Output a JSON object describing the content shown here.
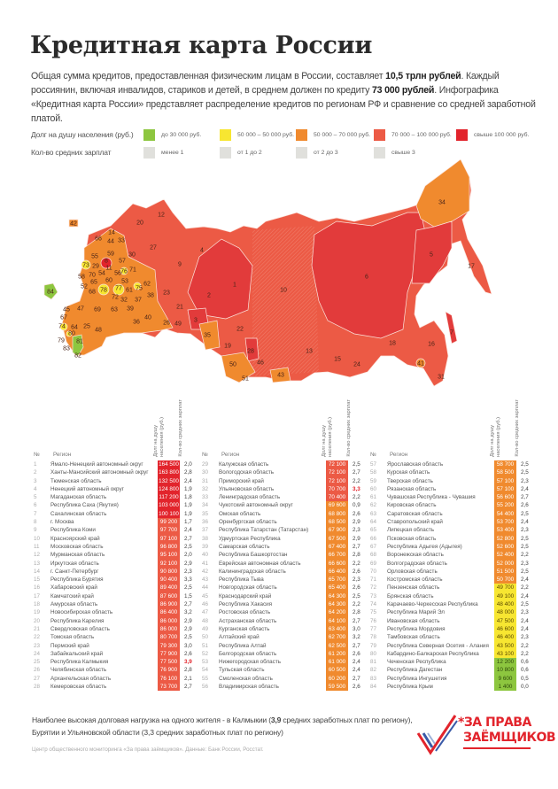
{
  "title": "Кредитная карта России",
  "intro": {
    "p1": "Общая сумма кредитов, предоставленная физическим лицам в России, составляет ",
    "b1": "10,5 трлн рублей",
    "p2": ". Каждый россиянин, включая инвалидов, стариков и детей, в среднем должен по кредиту ",
    "b2": "73 000 рублей",
    "p3": ". Инфографика «Кредитная карта России» представляет распределение кредитов по регионам РФ и сравнение со средней заработной платой."
  },
  "legend": {
    "debt_label": "Долг на душу населения (руб.)",
    "debt_items": [
      {
        "label": "до 30 000 руб.",
        "color": "#8dc63f"
      },
      {
        "label": "50 000 – 50 000 руб.",
        "color": "#f7e631"
      },
      {
        "label": "50 000 – 70 000 руб.",
        "color": "#f08a2e"
      },
      {
        "label": "70 000 – 100 000 руб.",
        "color": "#ec5a45"
      },
      {
        "label": "свыше 100 000 руб.",
        "color": "#e2242c"
      }
    ],
    "salary_label": "Кол-во средних зарплат",
    "salary_items": [
      {
        "label": "менее 1",
        "color": "#dddddd"
      },
      {
        "label": "от 1 до 2",
        "color": "#dddddd"
      },
      {
        "label": "от 2 до 3",
        "color": "#dddddd"
      },
      {
        "label": "свыше 3",
        "color": "#dddddd"
      }
    ]
  },
  "map_labels": [
    "42",
    "12",
    "20",
    "14",
    "33",
    "66",
    "44",
    "27",
    "4",
    "55",
    "59",
    "30",
    "73",
    "29",
    "8",
    "11",
    "57",
    "76",
    "71",
    "9",
    "58",
    "70",
    "54",
    "56",
    "1",
    "52",
    "65",
    "60",
    "53",
    "62",
    "78",
    "77",
    "61",
    "75",
    "23",
    "2",
    "84",
    "68",
    "72",
    "32",
    "37",
    "38",
    "45",
    "47",
    "69",
    "63",
    "39",
    "21",
    "67",
    "40",
    "3",
    "36",
    "26",
    "49",
    "22",
    "74",
    "64",
    "25",
    "48",
    "80",
    "35",
    "79",
    "81",
    "83",
    "82",
    "19",
    "28",
    "46",
    "50",
    "51",
    "43",
    "34",
    "10",
    "6",
    "5",
    "17",
    "13",
    "15",
    "24",
    "18",
    "16",
    "7",
    "41",
    "31"
  ],
  "table_headers": {
    "no": "№",
    "region": "Регион",
    "debt": "Долг на душу населения (руб.)",
    "salaries": "Кол-во средних зарплат"
  },
  "regions": [
    {
      "no": "1",
      "name": "Ямало-Ненецкий автономный округ",
      "debt": "164 500",
      "sal": "2,0"
    },
    {
      "no": "2",
      "name": "Ханты-Мансийский автономный округ",
      "debt": "163 800",
      "sal": "2,8"
    },
    {
      "no": "3",
      "name": "Тюменская область",
      "debt": "132 500",
      "sal": "2,4"
    },
    {
      "no": "4",
      "name": "Ненецкий автономный округ",
      "debt": "124 800",
      "sal": "1,9"
    },
    {
      "no": "5",
      "name": "Магаданская область",
      "debt": "117 200",
      "sal": "1,8"
    },
    {
      "no": "6",
      "name": "Республика Саха (Якутия)",
      "debt": "103 000",
      "sal": "1,9"
    },
    {
      "no": "7",
      "name": "Сахалинская область",
      "debt": "100 100",
      "sal": "1,9"
    },
    {
      "no": "8",
      "name": "г. Москва",
      "debt": "99 200",
      "sal": "1,7"
    },
    {
      "no": "9",
      "name": "Республика Коми",
      "debt": "97 700",
      "sal": "2,4"
    },
    {
      "no": "10",
      "name": "Красноярский край",
      "debt": "97 100",
      "sal": "2,7"
    },
    {
      "no": "11",
      "name": "Московская область",
      "debt": "96 800",
      "sal": "2,5"
    },
    {
      "no": "12",
      "name": "Мурманская область",
      "debt": "95 100",
      "sal": "2,0"
    },
    {
      "no": "13",
      "name": "Иркутская область",
      "debt": "92 100",
      "sal": "2,9"
    },
    {
      "no": "14",
      "name": "г. Санкт-Петербург",
      "debt": "90 800",
      "sal": "2,3"
    },
    {
      "no": "15",
      "name": "Республика Бурятия",
      "debt": "90 400",
      "sal": "3,3"
    },
    {
      "no": "16",
      "name": "Хабаровский край",
      "debt": "89 400",
      "sal": "2,5"
    },
    {
      "no": "17",
      "name": "Камчатский край",
      "debt": "87 600",
      "sal": "1,5"
    },
    {
      "no": "18",
      "name": "Амурская область",
      "debt": "86 900",
      "sal": "2,7"
    },
    {
      "no": "19",
      "name": "Новосибирская область",
      "debt": "86 400",
      "sal": "3,2"
    },
    {
      "no": "20",
      "name": "Республика Карелия",
      "debt": "86 000",
      "sal": "2,9"
    },
    {
      "no": "21",
      "name": "Свердловская область",
      "debt": "86 000",
      "sal": "2,9"
    },
    {
      "no": "22",
      "name": "Томская область",
      "debt": "80 700",
      "sal": "2,5"
    },
    {
      "no": "23",
      "name": "Пермский край",
      "debt": "79 300",
      "sal": "3,0"
    },
    {
      "no": "24",
      "name": "Забайкальский край",
      "debt": "77 900",
      "sal": "2,6"
    },
    {
      "no": "25",
      "name": "Республика Калмыкия",
      "debt": "77 500",
      "sal": "3,9",
      "highlight": true
    },
    {
      "no": "26",
      "name": "Челябинская область",
      "debt": "76 900",
      "sal": "2,8"
    },
    {
      "no": "27",
      "name": "Архангельская область",
      "debt": "76 100",
      "sal": "2,1"
    },
    {
      "no": "28",
      "name": "Кемеровская область",
      "debt": "73 700",
      "sal": "2,7"
    },
    {
      "no": "29",
      "name": "Калужская область",
      "debt": "72 100",
      "sal": "2,5"
    },
    {
      "no": "30",
      "name": "Вологодская область",
      "debt": "72 100",
      "sal": "2,7"
    },
    {
      "no": "31",
      "name": "Приморский край",
      "debt": "72 100",
      "sal": "2,2"
    },
    {
      "no": "32",
      "name": "Ульяновская область",
      "debt": "70 700",
      "sal": "3,3",
      "highlight": true
    },
    {
      "no": "33",
      "name": "Ленинградская область",
      "debt": "70 400",
      "sal": "2,2"
    },
    {
      "no": "34",
      "name": "Чукотский автономный округ",
      "debt": "69 600",
      "sal": "0,9"
    },
    {
      "no": "35",
      "name": "Омская область",
      "debt": "68 800",
      "sal": "2,6"
    },
    {
      "no": "36",
      "name": "Оренбургская область",
      "debt": "68 500",
      "sal": "2,9"
    },
    {
      "no": "37",
      "name": "Республика Татарстан (Татарстан)",
      "debt": "67 900",
      "sal": "2,3"
    },
    {
      "no": "38",
      "name": "Удмуртская Республика",
      "debt": "67 500",
      "sal": "2,9"
    },
    {
      "no": "39",
      "name": "Самарская область",
      "debt": "67 400",
      "sal": "2,7"
    },
    {
      "no": "40",
      "name": "Республика Башкортостан",
      "debt": "66 700",
      "sal": "2,8"
    },
    {
      "no": "41",
      "name": "Еврейская автономная область",
      "debt": "66 600",
      "sal": "2,2"
    },
    {
      "no": "42",
      "name": "Калининградская область",
      "debt": "66 400",
      "sal": "2,6"
    },
    {
      "no": "43",
      "name": "Республика Тыва",
      "debt": "65 700",
      "sal": "2,3"
    },
    {
      "no": "44",
      "name": "Новгородская область",
      "debt": "65 400",
      "sal": "2,6"
    },
    {
      "no": "45",
      "name": "Краснодарский край",
      "debt": "64 300",
      "sal": "2,5"
    },
    {
      "no": "46",
      "name": "Республика Хакасия",
      "debt": "64 300",
      "sal": "2,2"
    },
    {
      "no": "47",
      "name": "Ростовская область",
      "debt": "64 200",
      "sal": "2,8"
    },
    {
      "no": "48",
      "name": "Астраханская область",
      "debt": "64 100",
      "sal": "2,7"
    },
    {
      "no": "49",
      "name": "Курганская область",
      "debt": "63 400",
      "sal": "3,0"
    },
    {
      "no": "50",
      "name": "Алтайский край",
      "debt": "62 700",
      "sal": "3,2"
    },
    {
      "no": "51",
      "name": "Республика Алтай",
      "debt": "62 500",
      "sal": "2,7"
    },
    {
      "no": "52",
      "name": "Белгородская область",
      "debt": "61 200",
      "sal": "2,6"
    },
    {
      "no": "53",
      "name": "Нижегородская область",
      "debt": "61 000",
      "sal": "2,4"
    },
    {
      "no": "54",
      "name": "Тульская область",
      "debt": "60 500",
      "sal": "2,4"
    },
    {
      "no": "55",
      "name": "Смоленская область",
      "debt": "60 200",
      "sal": "2,7"
    },
    {
      "no": "56",
      "name": "Владимирская область",
      "debt": "59 500",
      "sal": "2,6"
    },
    {
      "no": "57",
      "name": "Ярославская область",
      "debt": "58 700",
      "sal": "2,5"
    },
    {
      "no": "58",
      "name": "Курская область",
      "debt": "58 500",
      "sal": "2,5"
    },
    {
      "no": "59",
      "name": "Тверская область",
      "debt": "57 100",
      "sal": "2,3"
    },
    {
      "no": "60",
      "name": "Рязанская область",
      "debt": "57 100",
      "sal": "2,4"
    },
    {
      "no": "61",
      "name": "Чувашская Республика - Чувашия",
      "debt": "56 600",
      "sal": "2,7"
    },
    {
      "no": "62",
      "name": "Кировская область",
      "debt": "55 200",
      "sal": "2,6"
    },
    {
      "no": "63",
      "name": "Саратовская область",
      "debt": "54 400",
      "sal": "2,5"
    },
    {
      "no": "64",
      "name": "Ставропольский край",
      "debt": "53 700",
      "sal": "2,4"
    },
    {
      "no": "65",
      "name": "Липецкая область",
      "debt": "53 400",
      "sal": "2,3"
    },
    {
      "no": "66",
      "name": "Псковская область",
      "debt": "52 800",
      "sal": "2,5"
    },
    {
      "no": "67",
      "name": "Республика Адыгея (Адыгея)",
      "debt": "52 600",
      "sal": "2,5"
    },
    {
      "no": "68",
      "name": "Воронежская область",
      "debt": "52 400",
      "sal": "2,2"
    },
    {
      "no": "69",
      "name": "Волгоградская область",
      "debt": "52 000",
      "sal": "2,3"
    },
    {
      "no": "70",
      "name": "Орловская область",
      "debt": "51 500",
      "sal": "2,5"
    },
    {
      "no": "71",
      "name": "Костромская область",
      "debt": "50 700",
      "sal": "2,4"
    },
    {
      "no": "72",
      "name": "Пензенская область",
      "debt": "49 700",
      "sal": "2,2"
    },
    {
      "no": "73",
      "name": "Брянская область",
      "debt": "49 100",
      "sal": "2,4"
    },
    {
      "no": "74",
      "name": "Карачаево-Черкесская Республика",
      "debt": "48 400",
      "sal": "2,5"
    },
    {
      "no": "75",
      "name": "Республика Марий Эл",
      "debt": "48 000",
      "sal": "2,3"
    },
    {
      "no": "76",
      "name": "Ивановская область",
      "debt": "47 500",
      "sal": "2,4"
    },
    {
      "no": "77",
      "name": "Республика Мордовия",
      "debt": "46 600",
      "sal": "2,4"
    },
    {
      "no": "78",
      "name": "Тамбовская область",
      "debt": "46 400",
      "sal": "2,3"
    },
    {
      "no": "79",
      "name": "Республика Северная Осетия - Алания",
      "debt": "43 500",
      "sal": "2,2"
    },
    {
      "no": "80",
      "name": "Кабардино-Балкарская Республика",
      "debt": "43 100",
      "sal": "2,2"
    },
    {
      "no": "81",
      "name": "Чеченская Республика",
      "debt": "12 200",
      "sal": "0,6"
    },
    {
      "no": "82",
      "name": "Республика Дагестан",
      "debt": "10 800",
      "sal": "0,6"
    },
    {
      "no": "83",
      "name": "Республика Ингушетия",
      "debt": "9 600",
      "sal": "0,5"
    },
    {
      "no": "84",
      "name": "Республика Крым",
      "debt": "1 400",
      "sal": "0,0"
    }
  ],
  "footer": {
    "line1a": "Наиболее высокая долговая нагрузка на одного жителя - в Калмыкии (",
    "line1b": "3,9",
    "line1c": " средних заработных плат по региону),",
    "line2": "Бурятии и Ульяновской области (3,3 средних заработных плат по региону)",
    "source": "Центр общественного мониторинга «За права заёмщиков». Данные: Банк России, Росстат."
  },
  "logo": {
    "line1": "*ЗА ПРАВА",
    "line2": "ЗАЁМЩИКОВ"
  },
  "colors": {
    "accent": "#e2242c",
    "text": "#333333"
  }
}
